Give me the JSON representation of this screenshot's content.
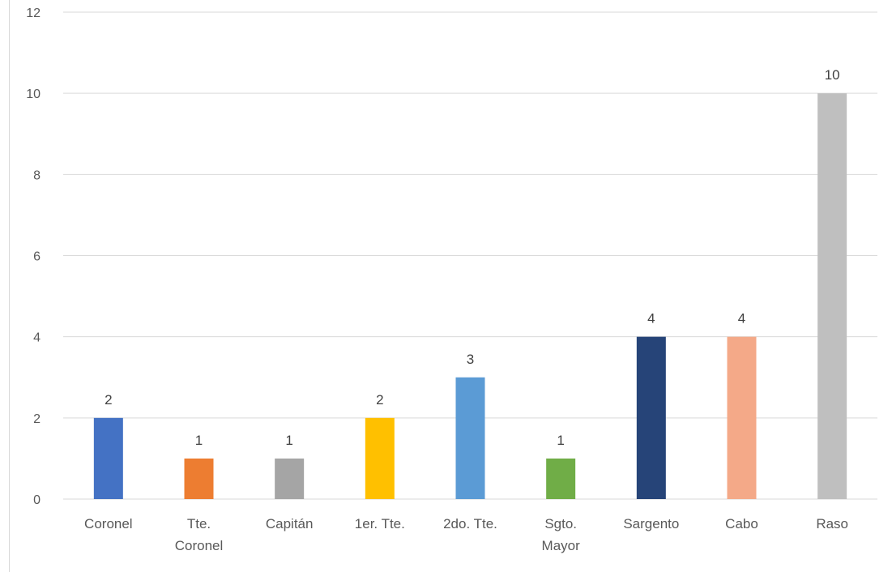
{
  "chart_data": {
    "type": "bar",
    "categories": [
      [
        "Coronel"
      ],
      [
        "Tte.",
        "Coronel"
      ],
      [
        "Capitán"
      ],
      [
        "1er. Tte."
      ],
      [
        "2do. Tte."
      ],
      [
        "Sgto.",
        "Mayor"
      ],
      [
        "Sargento"
      ],
      [
        "Cabo"
      ],
      [
        "Raso"
      ]
    ],
    "values": [
      2,
      1,
      1,
      2,
      3,
      1,
      4,
      4,
      10
    ],
    "colors": [
      "#4472c4",
      "#ed7d31",
      "#a5a5a5",
      "#ffc000",
      "#5b9bd5",
      "#70ad47",
      "#264478",
      "#f4a988",
      "#bfbfbf"
    ],
    "ylim": [
      0,
      12
    ],
    "yticks": [
      0,
      2,
      4,
      6,
      8,
      10,
      12
    ],
    "grid": true,
    "data_labels": true,
    "gridline_color": "#d9d9d9"
  }
}
